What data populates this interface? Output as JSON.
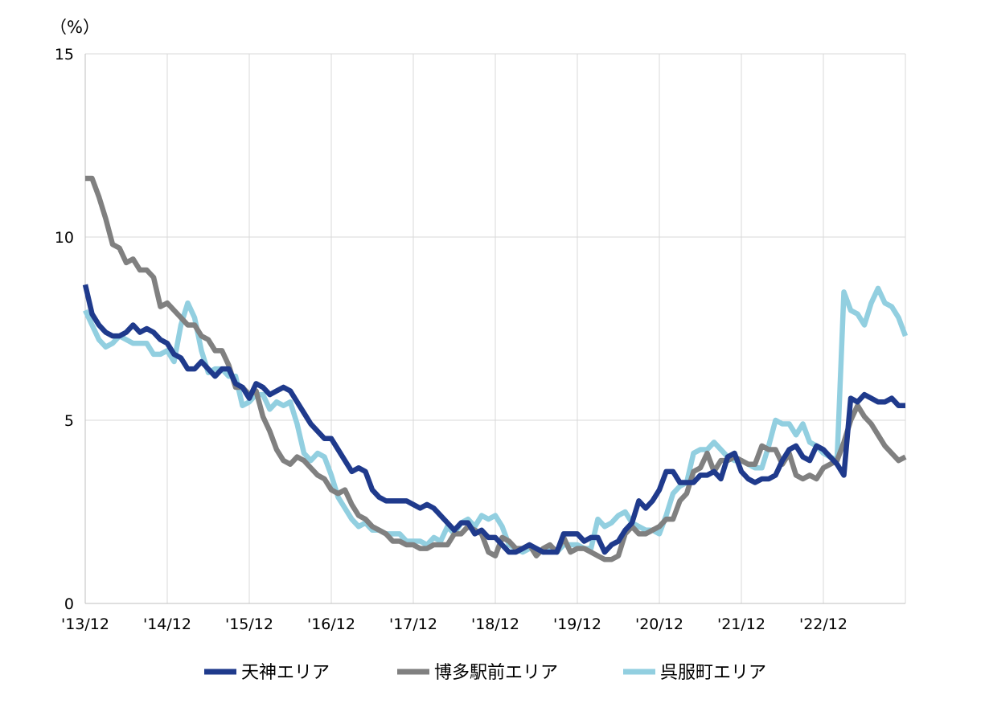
{
  "chart_data": {
    "type": "line",
    "title": "",
    "xlabel": "",
    "ylabel": "",
    "y_unit": "（%）",
    "ylim": [
      0,
      15
    ],
    "y_ticks": [
      0,
      5,
      10,
      15
    ],
    "grid": true,
    "legend_position": "bottom",
    "x_start": "2013-12",
    "x_tick_labels": [
      "'13/12",
      "'14/12",
      "'15/12",
      "'16/12",
      "'17/12",
      "'18/12",
      "'19/12",
      "'20/12",
      "'21/12",
      "'22/12"
    ],
    "series": [
      {
        "name": "天神エリア",
        "color": "#1f3a8c",
        "values": [
          8.7,
          7.9,
          7.6,
          7.4,
          7.3,
          7.3,
          7.4,
          7.6,
          7.4,
          7.5,
          7.4,
          7.2,
          7.1,
          6.8,
          6.7,
          6.4,
          6.4,
          6.6,
          6.4,
          6.2,
          6.4,
          6.4,
          6.0,
          5.9,
          5.6,
          6.0,
          5.9,
          5.7,
          5.8,
          5.9,
          5.8,
          5.5,
          5.2,
          4.9,
          4.7,
          4.5,
          4.5,
          4.2,
          3.9,
          3.6,
          3.7,
          3.6,
          3.1,
          2.9,
          2.8,
          2.8,
          2.8,
          2.8,
          2.7,
          2.6,
          2.7,
          2.6,
          2.4,
          2.2,
          2.0,
          2.2,
          2.2,
          1.9,
          2.0,
          1.8,
          1.8,
          1.6,
          1.4,
          1.4,
          1.5,
          1.6,
          1.5,
          1.4,
          1.4,
          1.4,
          1.9,
          1.9,
          1.9,
          1.7,
          1.8,
          1.8,
          1.4,
          1.6,
          1.7,
          2.0,
          2.2,
          2.8,
          2.6,
          2.8,
          3.1,
          3.6,
          3.6,
          3.3,
          3.3,
          3.3,
          3.5,
          3.5,
          3.6,
          3.4,
          4.0,
          4.1,
          3.6,
          3.4,
          3.3,
          3.4,
          3.4,
          3.5,
          3.9,
          4.2,
          4.3,
          4.0,
          3.9,
          4.3,
          4.2,
          4.0,
          3.8,
          3.5,
          5.6,
          5.5,
          5.7,
          5.6,
          5.5,
          5.5,
          5.6,
          5.4,
          5.4
        ]
      },
      {
        "name": "博多駅前エリア",
        "color": "#808080",
        "values": [
          11.6,
          11.6,
          11.1,
          10.5,
          9.8,
          9.7,
          9.3,
          9.4,
          9.1,
          9.1,
          8.9,
          8.1,
          8.2,
          8.0,
          7.8,
          7.6,
          7.6,
          7.3,
          7.2,
          6.9,
          6.9,
          6.5,
          5.9,
          5.9,
          5.7,
          5.8,
          5.1,
          4.7,
          4.2,
          3.9,
          3.8,
          4.0,
          3.9,
          3.7,
          3.5,
          3.4,
          3.1,
          3.0,
          3.1,
          2.7,
          2.4,
          2.3,
          2.1,
          2.0,
          1.9,
          1.7,
          1.7,
          1.6,
          1.6,
          1.5,
          1.5,
          1.6,
          1.6,
          1.6,
          1.9,
          1.9,
          2.1,
          2.0,
          1.9,
          1.4,
          1.3,
          1.8,
          1.7,
          1.5,
          1.5,
          1.6,
          1.3,
          1.5,
          1.6,
          1.4,
          1.8,
          1.4,
          1.5,
          1.5,
          1.4,
          1.3,
          1.2,
          1.2,
          1.3,
          1.9,
          2.1,
          1.9,
          1.9,
          2.0,
          2.1,
          2.3,
          2.3,
          2.8,
          3.0,
          3.6,
          3.7,
          4.1,
          3.6,
          3.9,
          3.9,
          4.0,
          3.9,
          3.8,
          3.8,
          4.3,
          4.2,
          4.2,
          3.8,
          4.1,
          3.5,
          3.4,
          3.5,
          3.4,
          3.7,
          3.8,
          3.9,
          4.4,
          5.0,
          5.4,
          5.1,
          4.9,
          4.6,
          4.3,
          4.1,
          3.9,
          4.0
        ]
      },
      {
        "name": "呉服町エリア",
        "color": "#92cfe0",
        "values": [
          8.0,
          7.6,
          7.2,
          7.0,
          7.1,
          7.3,
          7.2,
          7.1,
          7.1,
          7.1,
          6.8,
          6.8,
          6.9,
          6.6,
          7.6,
          8.2,
          7.8,
          6.9,
          6.3,
          6.4,
          6.4,
          6.2,
          6.2,
          5.4,
          5.5,
          5.7,
          5.7,
          5.3,
          5.5,
          5.4,
          5.5,
          4.9,
          4.1,
          3.9,
          4.1,
          4.0,
          3.5,
          2.9,
          2.6,
          2.3,
          2.1,
          2.2,
          2.0,
          2.0,
          1.9,
          1.9,
          1.9,
          1.7,
          1.7,
          1.7,
          1.6,
          1.8,
          1.7,
          2.1,
          1.9,
          2.2,
          2.3,
          2.1,
          2.4,
          2.3,
          2.4,
          2.1,
          1.6,
          1.5,
          1.4,
          1.5,
          1.5,
          1.4,
          1.5,
          1.4,
          1.6,
          1.6,
          1.6,
          1.5,
          1.5,
          2.3,
          2.1,
          2.2,
          2.4,
          2.5,
          2.2,
          2.1,
          2.0,
          2.0,
          1.9,
          2.4,
          3.0,
          3.2,
          3.3,
          4.1,
          4.2,
          4.2,
          4.4,
          4.2,
          4.0,
          3.9,
          3.9,
          3.8,
          3.7,
          3.7,
          4.3,
          5.0,
          4.9,
          4.9,
          4.6,
          4.9,
          4.4,
          4.3,
          4.1,
          4.0,
          3.9,
          8.5,
          8.0,
          7.9,
          7.6,
          8.2,
          8.6,
          8.2,
          8.1,
          7.8,
          7.3
        ]
      }
    ]
  }
}
